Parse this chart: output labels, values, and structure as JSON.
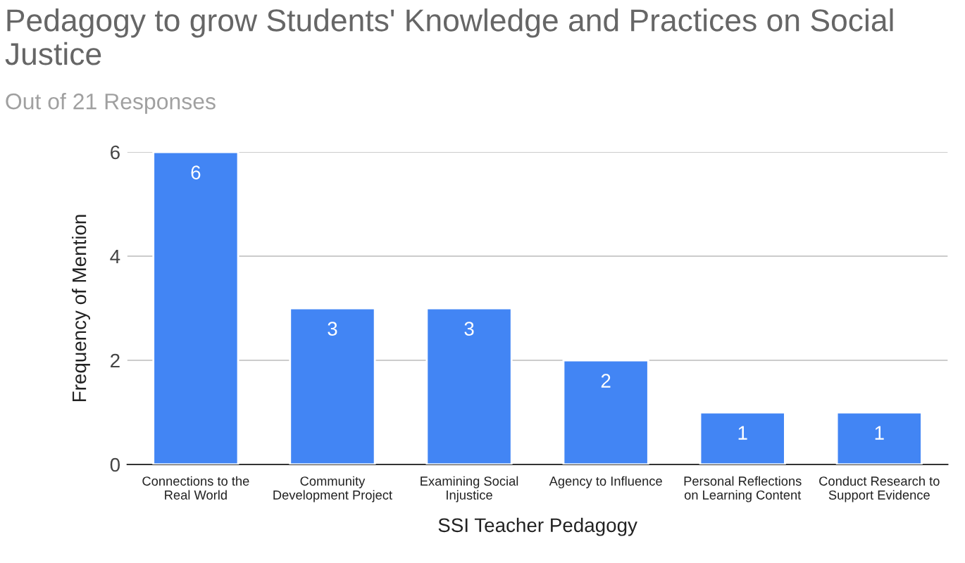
{
  "chart_data": {
    "type": "bar",
    "title": "Pedagogy to grow Students' Knowledge and Practices on Social Justice",
    "subtitle": "Out of 21 Responses",
    "xlabel": "SSI Teacher Pedagogy",
    "ylabel": "Frequency of Mention",
    "categories": [
      "Connections to the Real World",
      "Community Development Project",
      "Examining Social Injustice",
      "Agency to Influence",
      "Personal Reflections on Learning Content",
      "Conduct Research to Support Evidence"
    ],
    "values": [
      6,
      3,
      3,
      2,
      1,
      1
    ],
    "color": "#4285f4",
    "ylim": [
      0,
      6
    ],
    "yticks": [
      0,
      2,
      4,
      6
    ],
    "grid": "y",
    "data_labels": true
  }
}
